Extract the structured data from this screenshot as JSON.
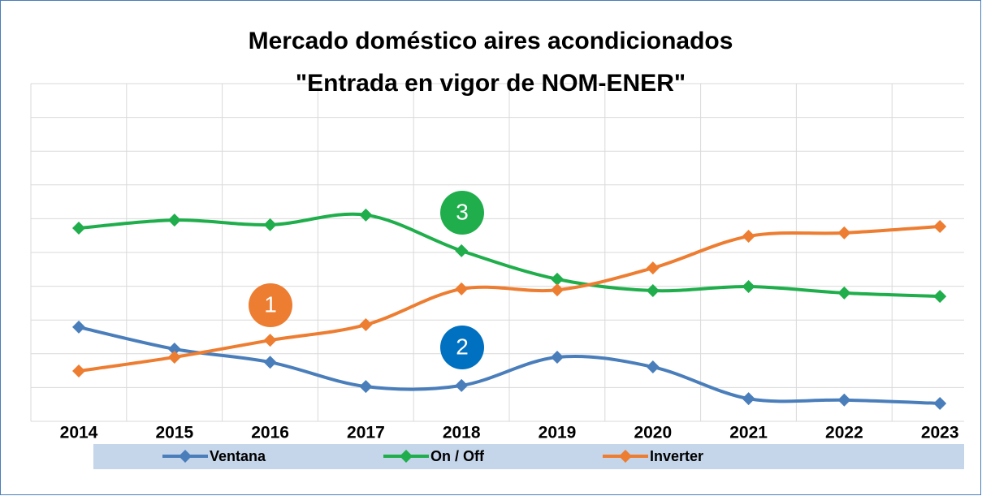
{
  "chart_data": {
    "type": "line",
    "title": [
      "Mercado doméstico aires acondicionados",
      "\"Entrada en vigor de NOM-ENER\""
    ],
    "categories": [
      "2014",
      "2015",
      "2016",
      "2017",
      "2018",
      "2019",
      "2020",
      "2021",
      "2022",
      "2023"
    ],
    "series": [
      {
        "name": "Ventana",
        "color": "#4a7ebb",
        "values": [
          2.79,
          2.14,
          1.75,
          1.03,
          1.06,
          1.9,
          1.61,
          0.67,
          0.63,
          0.53
        ]
      },
      {
        "name": "On / Off",
        "color": "#1fae4b",
        "values": [
          5.72,
          5.96,
          5.82,
          6.11,
          5.05,
          4.21,
          3.87,
          3.99,
          3.8,
          3.7
        ]
      },
      {
        "name": "Inverter",
        "color": "#ed7d31",
        "values": [
          1.49,
          1.9,
          2.4,
          2.86,
          3.92,
          3.89,
          4.54,
          5.48,
          5.58,
          5.77
        ]
      }
    ],
    "ylim": [
      0,
      10
    ],
    "yticks": [
      0,
      1,
      2,
      3,
      4,
      5,
      6,
      7,
      8,
      9,
      10
    ],
    "grid": true,
    "annotations": [
      {
        "text": "1",
        "color": "#ed7d31"
      },
      {
        "text": "2",
        "color": "#0070c0"
      },
      {
        "text": "3",
        "color": "#1fae4b"
      }
    ]
  }
}
